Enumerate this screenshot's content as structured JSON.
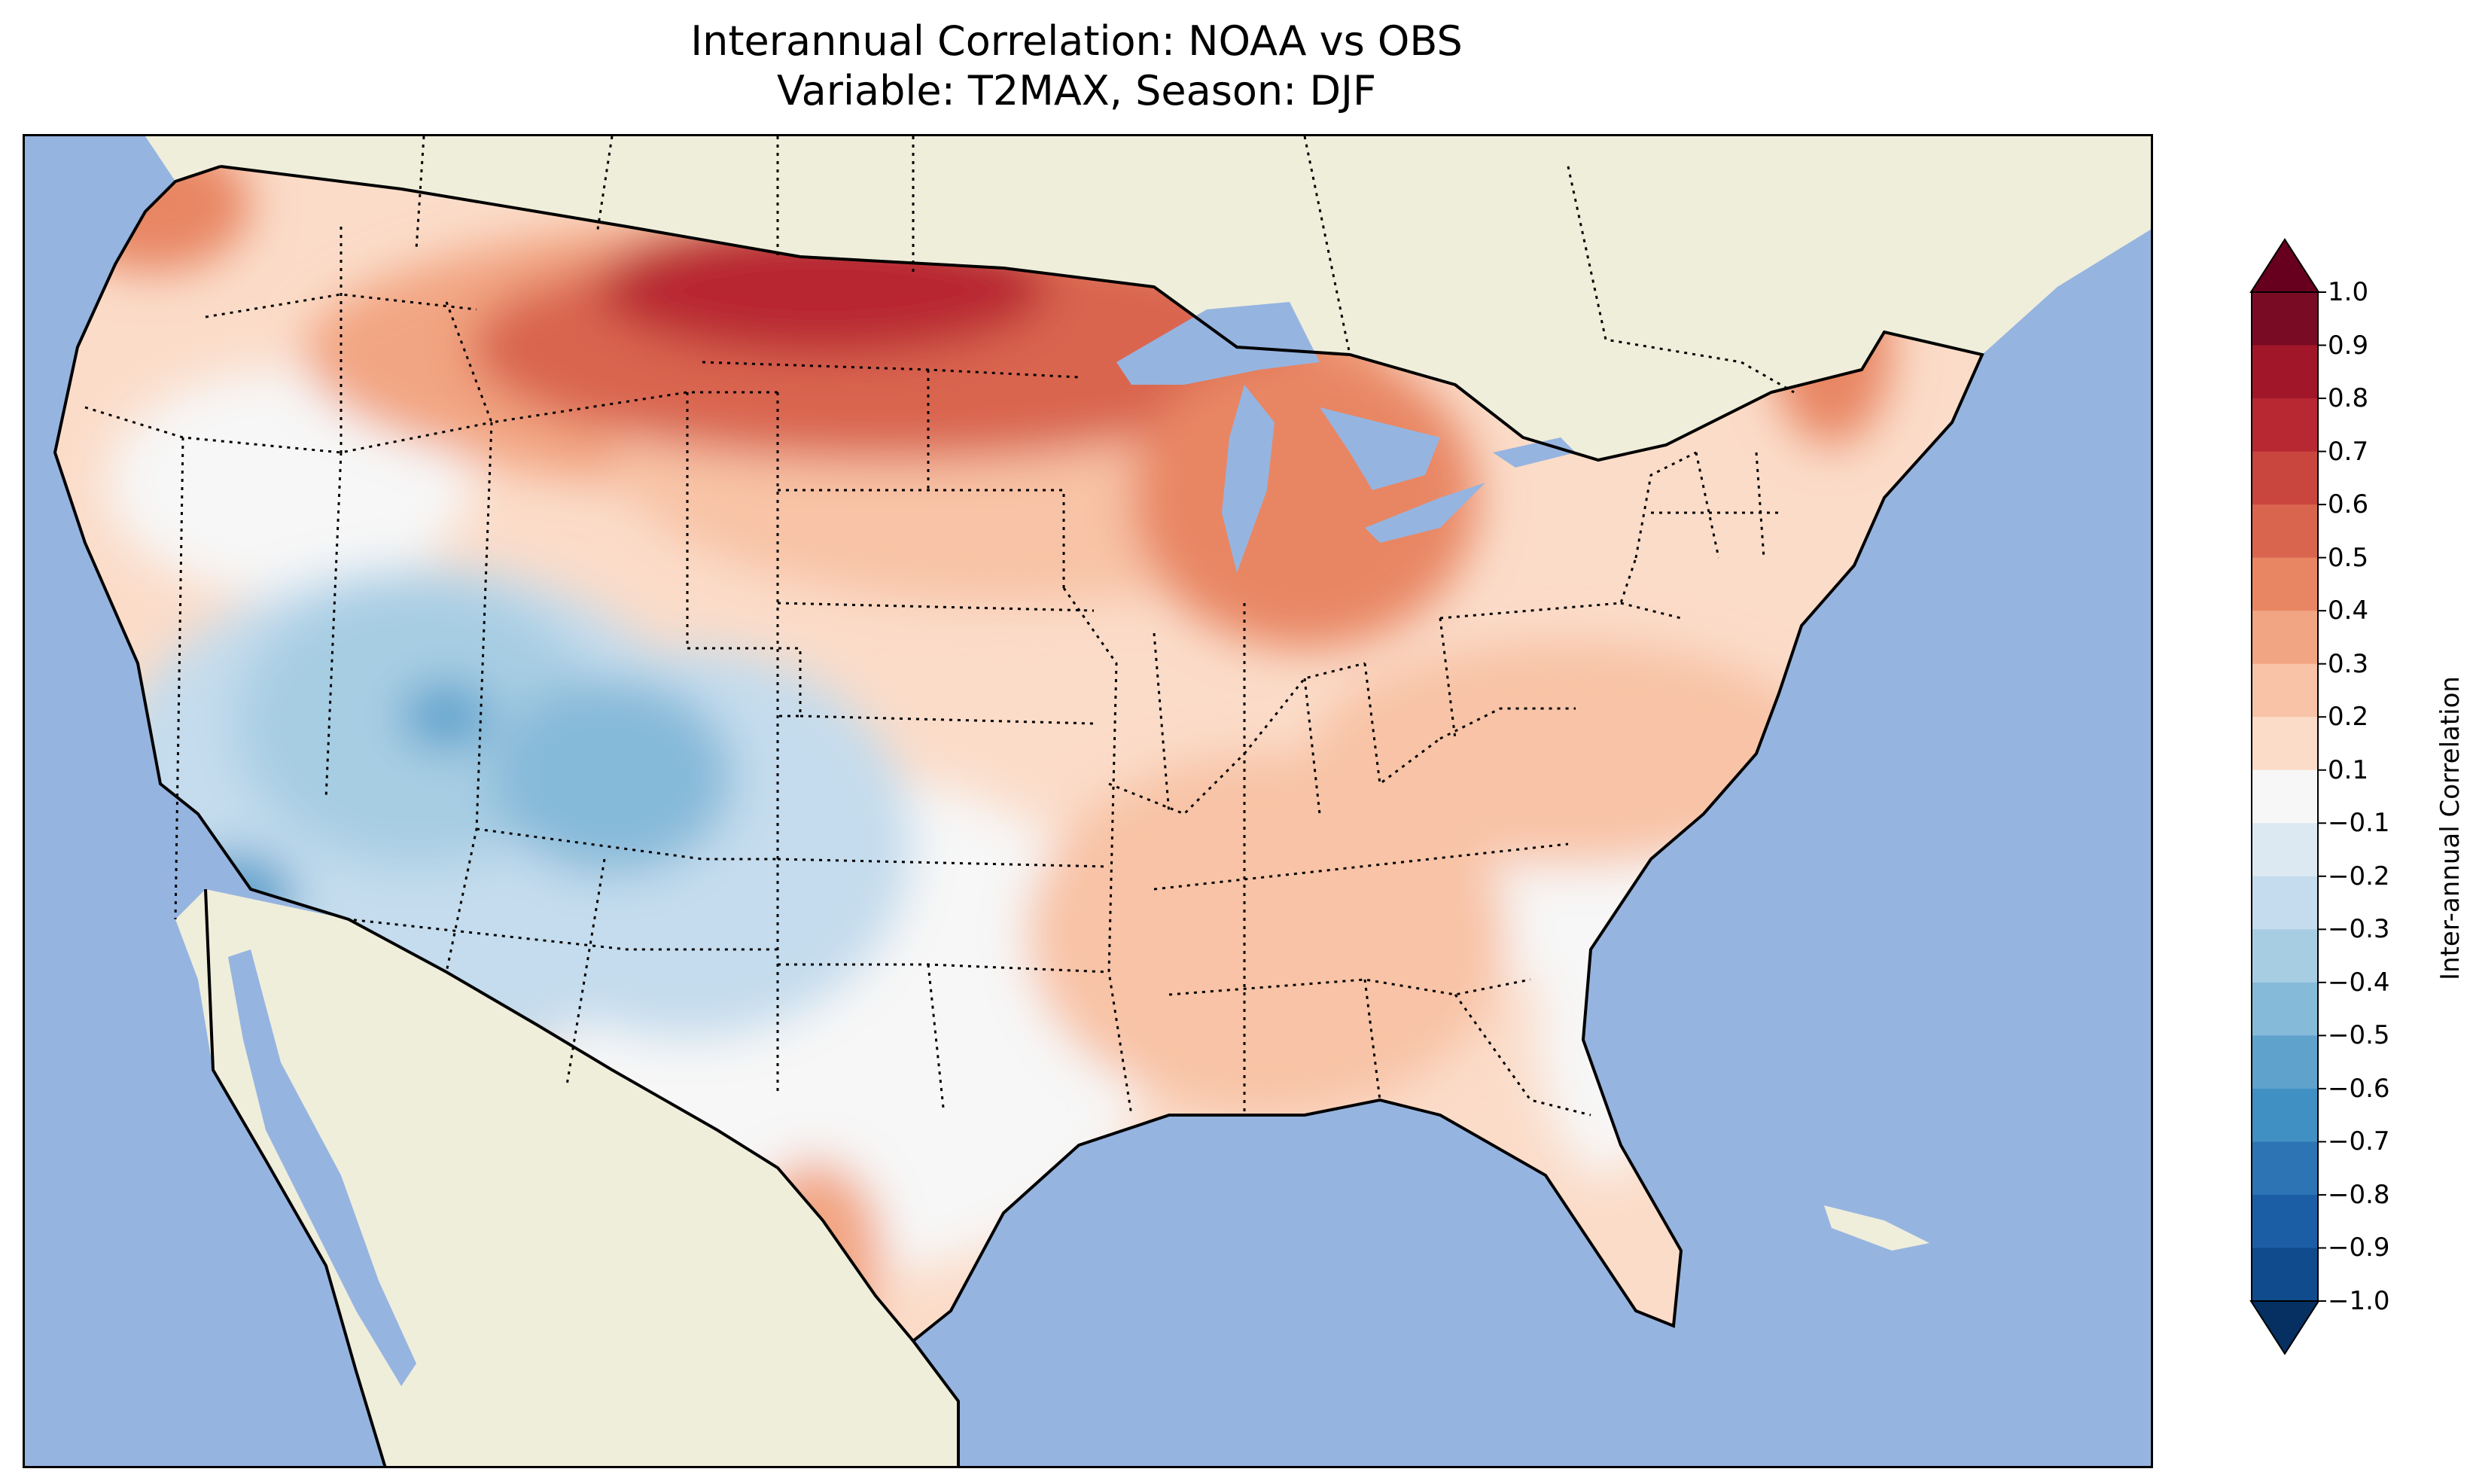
{
  "title_line1": "Interannual Correlation: NOAA vs OBS",
  "title_line2": "Variable: T2MAX, Season: DJF",
  "colorbar": {
    "label": "Inter-annual Correlation",
    "tick_labels": [
      "1.0",
      "0.9",
      "0.8",
      "0.7",
      "0.6",
      "0.5",
      "0.4",
      "0.3",
      "0.2",
      "0.1",
      "−0.1",
      "−0.2",
      "−0.3",
      "−0.4",
      "−0.5",
      "−0.6",
      "−0.7",
      "−0.8",
      "−0.9",
      "−1.0"
    ],
    "colors_top_to_bottom": [
      "#7a0b24",
      "#a11729",
      "#b82833",
      "#c9463e",
      "#d9654f",
      "#e88663",
      "#f2a582",
      "#f8c3a6",
      "#fbdcc9",
      "#f7f7f7",
      "#dde9f2",
      "#c4dced",
      "#a7cde3",
      "#86bad9",
      "#5fa3cd",
      "#4190c3",
      "#2c74b4",
      "#1c5ea6",
      "#0f4b8d"
    ],
    "extend_max_color": "#67001f",
    "extend_min_color": "#053061"
  },
  "map": {
    "ocean_color": "#96b4e0",
    "land_color": "#efeedb",
    "lake_color": "#96b4e0",
    "border_color": "#000000"
  }
}
